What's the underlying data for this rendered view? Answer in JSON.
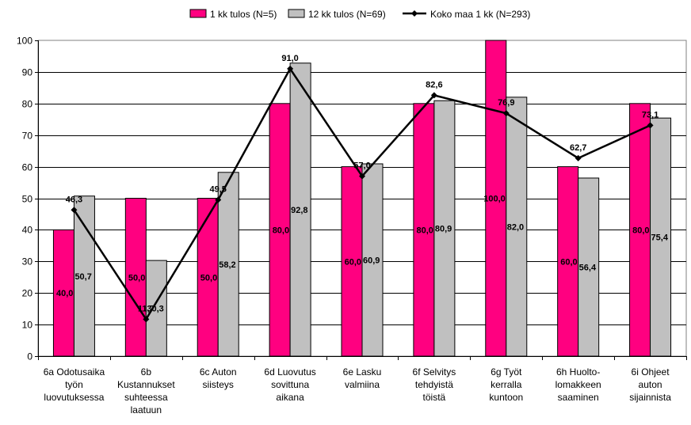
{
  "chart_data": {
    "type": "bar",
    "title": "",
    "xlabel": "",
    "ylabel": "",
    "ylim": [
      0,
      100
    ],
    "ytick_step": 10,
    "grid": true,
    "legend_position": "top-center",
    "categories": [
      [
        "6a Odotusaika",
        "työn",
        "luovutuksessa"
      ],
      [
        "6b",
        "Kustannukset",
        "suhteessa",
        "laatuun"
      ],
      [
        "6c Auton",
        "siisteys"
      ],
      [
        "6d Luovutus",
        "sovittuna",
        "aikana"
      ],
      [
        "6e Lasku",
        "valmiina"
      ],
      [
        "6f Selvitys",
        "tehdyistä",
        "töistä"
      ],
      [
        "6g Työt",
        "kerralla",
        "kuntoon"
      ],
      [
        "6h Huolto-",
        "lomakkeen",
        "saaminen"
      ],
      [
        "6i Ohjeet",
        "auton",
        "sijainnista"
      ]
    ],
    "series": [
      {
        "name": "1 kk tulos (N=5)",
        "kind": "bar",
        "color": "#ff0080",
        "values": [
          40.0,
          50.0,
          50.0,
          80.0,
          60.0,
          80.0,
          100.0,
          60.0,
          80.0
        ],
        "labels": [
          "40,0",
          "50,0",
          "50,0",
          "80,0",
          "60,0",
          "80,0",
          "100,0",
          "60,0",
          "80,0"
        ]
      },
      {
        "name": "12 kk tulos (N=69)",
        "kind": "bar",
        "color": "#c0c0c0",
        "values": [
          50.7,
          30.3,
          58.2,
          92.8,
          60.9,
          80.9,
          82.0,
          56.4,
          75.4
        ],
        "labels": [
          "50,7",
          "30,3",
          "58,2",
          "92,8",
          "60,9",
          "80,9",
          "82,0",
          "56,4",
          "75,4"
        ]
      },
      {
        "name": "Koko maa 1 kk (N=293)",
        "kind": "line",
        "color": "#000000",
        "values": [
          46.3,
          11.7,
          49.5,
          91.0,
          57.0,
          82.6,
          76.9,
          62.7,
          73.1
        ],
        "labels": [
          "46,3",
          "11,7",
          "49,5",
          "91,0",
          "57,0",
          "82,6",
          "76,9",
          "62,7",
          "73,1"
        ]
      }
    ]
  }
}
